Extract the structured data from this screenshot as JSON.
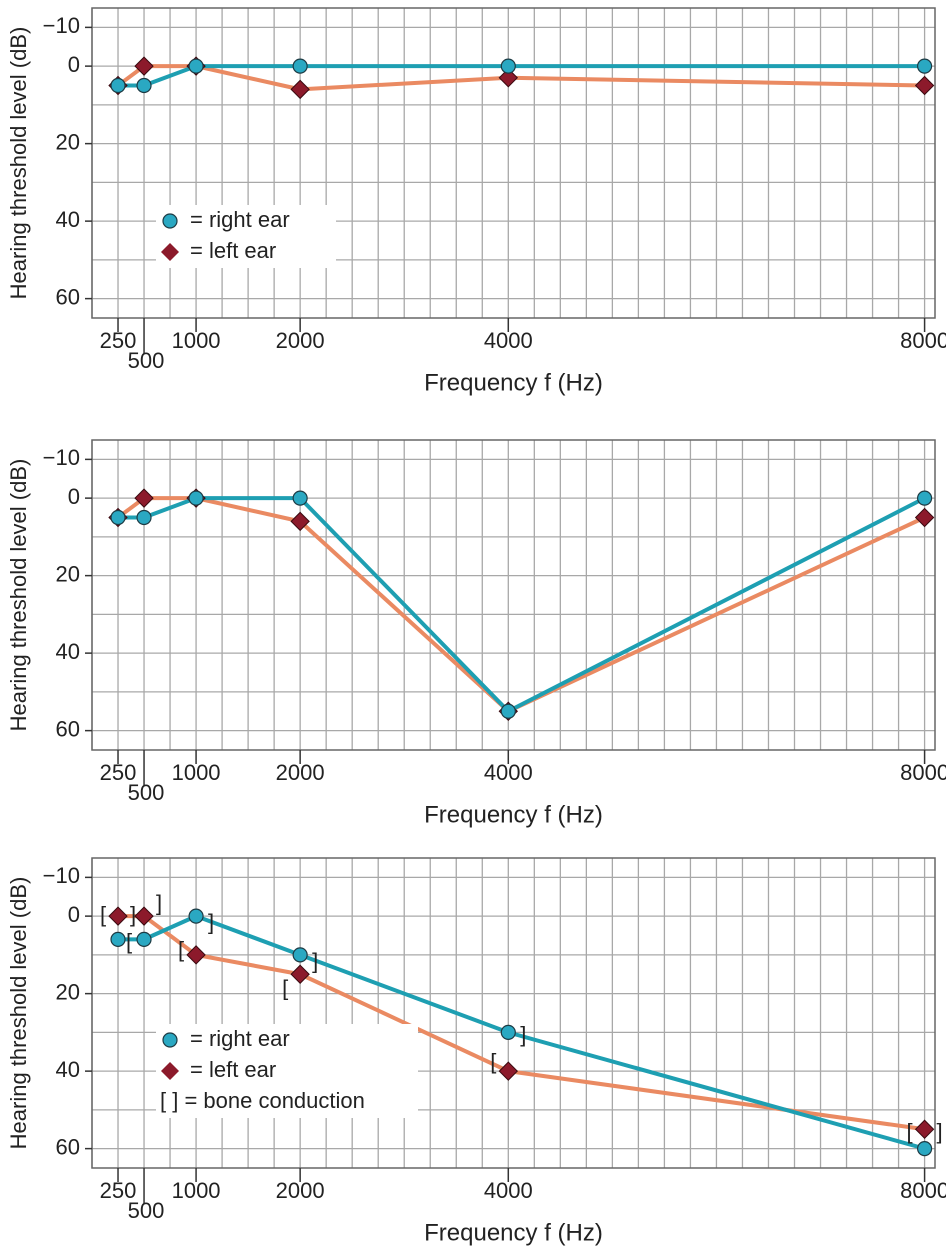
{
  "chart_data": [
    {
      "type": "line",
      "x_label": "Frequency f (Hz)",
      "y_label": "Hearing threshold level (dB)",
      "x": [
        250,
        500,
        1000,
        2000,
        4000,
        8000
      ],
      "xlim": [
        0,
        8100
      ],
      "xticks": [
        250,
        500,
        1000,
        2000,
        4000,
        8000
      ],
      "ylim": [
        -15,
        65
      ],
      "y_inverted": true,
      "yticks": [
        {
          "value": -10,
          "label": "−10"
        },
        0,
        20,
        40,
        60
      ],
      "grid": true,
      "xgrid_step": 250,
      "ygrid_step": 10,
      "legend": "lower left",
      "series": [
        {
          "name": "= left ear",
          "marker": "diamond",
          "color": "#8c1a2b",
          "line_color": "#ea8a62",
          "values": [
            5,
            0,
            0,
            6,
            3,
            5
          ]
        },
        {
          "name": "= right ear",
          "marker": "circle",
          "color": "#2aa8c2",
          "line_color": "#1e9fb2",
          "values": [
            5,
            5,
            0,
            0,
            0,
            0
          ]
        }
      ]
    },
    {
      "type": "line",
      "x_label": "Frequency f (Hz)",
      "y_label": "Hearing threshold level (dB)",
      "x": [
        250,
        500,
        1000,
        2000,
        4000,
        8000
      ],
      "xlim": [
        0,
        8100
      ],
      "xticks": [
        250,
        500,
        1000,
        2000,
        4000,
        8000
      ],
      "ylim": [
        -15,
        65
      ],
      "y_inverted": true,
      "yticks": [
        {
          "value": -10,
          "label": "−10"
        },
        0,
        20,
        40,
        60
      ],
      "grid": true,
      "xgrid_step": 250,
      "ygrid_step": 10,
      "series": [
        {
          "marker": "diamond",
          "color": "#8c1a2b",
          "line_color": "#ea8a62",
          "values": [
            5,
            0,
            0,
            6,
            55,
            5
          ]
        },
        {
          "marker": "circle",
          "color": "#2aa8c2",
          "line_color": "#1e9fb2",
          "values": [
            5,
            5,
            0,
            0,
            55,
            0
          ]
        }
      ]
    },
    {
      "type": "line",
      "x_label": "Frequency f (Hz)",
      "y_label": "Hearing threshold level (dB)",
      "x": [
        250,
        500,
        1000,
        2000,
        4000,
        8000
      ],
      "xlim": [
        0,
        8100
      ],
      "xticks": [
        250,
        500,
        1000,
        2000,
        4000,
        8000
      ],
      "ylim": [
        -15,
        65
      ],
      "y_inverted": true,
      "yticks": [
        {
          "value": -10,
          "label": "−10"
        },
        0,
        20,
        40,
        60
      ],
      "grid": true,
      "xgrid_step": 250,
      "ygrid_step": 10,
      "legend": "lower left",
      "series": [
        {
          "name": "= left ear",
          "marker": "diamond",
          "color": "#8c1a2b",
          "line_color": "#ea8a62",
          "values": [
            0,
            0,
            10,
            15,
            40,
            55
          ]
        },
        {
          "name": "= right ear",
          "marker": "circle",
          "color": "#2aa8c2",
          "line_color": "#1e9fb2",
          "values": [
            6,
            6,
            0,
            10,
            30,
            60
          ]
        }
      ],
      "bone_conduction": {
        "name": "[ ] = bone conduction",
        "brackets": [
          {
            "symbol": "[",
            "values": [
              0,
              7,
              9,
              19,
              38,
              56
            ]
          },
          {
            "symbol": "]",
            "values": [
              0,
              -3,
              2,
              12,
              31,
              56
            ]
          }
        ]
      }
    }
  ]
}
